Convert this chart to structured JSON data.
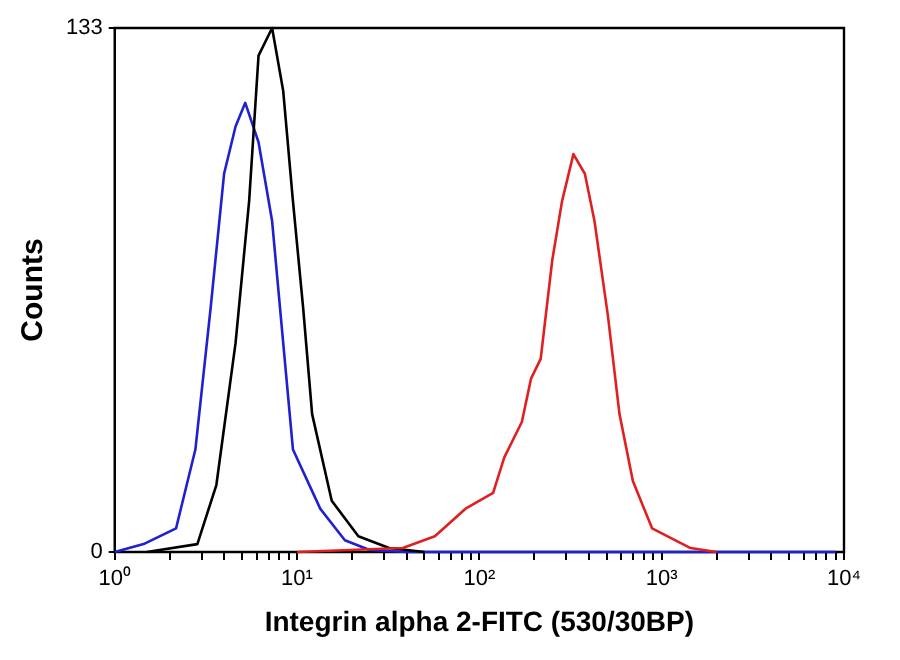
{
  "chart_data": {
    "type": "line",
    "xlabel": "Integrin alpha 2-FITC (530/30BP)",
    "ylabel": "Counts",
    "log": "x",
    "xlim": [
      1,
      10000
    ],
    "ylim": [
      0,
      133
    ],
    "xticks": [
      {
        "value": 1,
        "label": "10⁰"
      },
      {
        "value": 2,
        "label": null
      },
      {
        "value": 3,
        "label": null
      },
      {
        "value": 4,
        "label": null
      },
      {
        "value": 5,
        "label": null
      },
      {
        "value": 6,
        "label": null
      },
      {
        "value": 7,
        "label": null
      },
      {
        "value": 8,
        "label": null
      },
      {
        "value": 9,
        "label": null
      },
      {
        "value": 10,
        "label": "10¹"
      },
      {
        "value": 20,
        "label": null
      },
      {
        "value": 30,
        "label": null
      },
      {
        "value": 40,
        "label": null
      },
      {
        "value": 50,
        "label": null
      },
      {
        "value": 60,
        "label": null
      },
      {
        "value": 70,
        "label": null
      },
      {
        "value": 80,
        "label": null
      },
      {
        "value": 90,
        "label": null
      },
      {
        "value": 100,
        "label": "10²"
      },
      {
        "value": 200,
        "label": null
      },
      {
        "value": 300,
        "label": null
      },
      {
        "value": 400,
        "label": null
      },
      {
        "value": 500,
        "label": null
      },
      {
        "value": 600,
        "label": null
      },
      {
        "value": 700,
        "label": null
      },
      {
        "value": 800,
        "label": null
      },
      {
        "value": 900,
        "label": null
      },
      {
        "value": 1000,
        "label": "10³"
      },
      {
        "value": 2000,
        "label": null
      },
      {
        "value": 3000,
        "label": null
      },
      {
        "value": 4000,
        "label": null
      },
      {
        "value": 5000,
        "label": null
      },
      {
        "value": 6000,
        "label": null
      },
      {
        "value": 7000,
        "label": null
      },
      {
        "value": 8000,
        "label": null
      },
      {
        "value": 9000,
        "label": null
      },
      {
        "value": 10000,
        "label": "10⁴"
      }
    ],
    "yticks": [
      0,
      133
    ],
    "grid": false,
    "legend": false,
    "marker": "none",
    "line_style": "solid",
    "series": [
      {
        "color": "#e02020",
        "x": [
          10,
          38,
          57,
          84,
          119,
          137,
          171,
          192,
          217,
          251,
          284,
          328,
          379,
          428,
          507,
          587,
          695,
          886,
          1440,
          2000
        ],
        "values": [
          0,
          1,
          4,
          11,
          15,
          24,
          33,
          44,
          49,
          74,
          89,
          101,
          96,
          84,
          60,
          35,
          18,
          6,
          1,
          0
        ]
      },
      {
        "color": "#000000",
        "x": [
          1.5,
          2.84,
          3.61,
          4.6,
          5.46,
          6.15,
          7.3,
          8.4,
          9.5,
          10.8,
          12.1,
          15.5,
          21.7,
          32,
          50
        ],
        "values": [
          0,
          2,
          17,
          53,
          89,
          126,
          133,
          117,
          89,
          62,
          35,
          13,
          4,
          1,
          0
        ]
      },
      {
        "color": "#2020d0",
        "x": [
          1,
          1.44,
          2.17,
          2.77,
          3.36,
          3.98,
          4.6,
          5.2,
          6.15,
          7.3,
          8.4,
          9.5,
          13.4,
          18.3,
          25,
          40,
          9000
        ],
        "values": [
          0,
          2,
          6,
          26,
          62,
          96,
          108,
          114,
          104,
          84,
          53,
          26,
          11,
          3,
          0.5,
          0,
          0
        ]
      }
    ]
  }
}
